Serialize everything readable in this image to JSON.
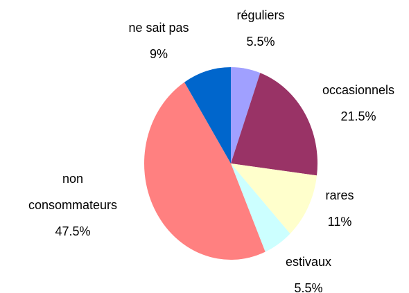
{
  "chart_data": {
    "type": "pie",
    "categories": [
      "réguliers",
      "occasionnels",
      "rares",
      "estivaux",
      "non consommateurs",
      "ne sait pas"
    ],
    "values": [
      5.5,
      21.5,
      11,
      5.5,
      47.5,
      9
    ],
    "value_labels": [
      "5.5%",
      "21.5%",
      "11%",
      "5.5%",
      "47.5%",
      "9%"
    ],
    "colors": [
      "#a0a0ff",
      "#993366",
      "#ffffcc",
      "#ccffff",
      "#ff8080",
      "#0066cc"
    ]
  }
}
